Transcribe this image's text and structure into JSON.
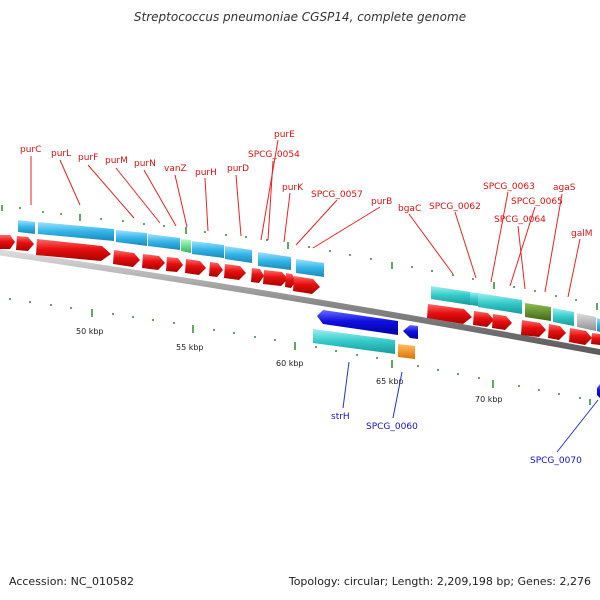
{
  "title": "Streptococcus pneumoniae CGSP14, complete genome",
  "footer": {
    "accession": "Accession: NC_010582",
    "summary": "Topology: circular; Length: 2,209,198 bp; Genes: 2,276"
  },
  "scale_labels": [
    "50 kbp",
    "55 kbp",
    "60 kbp",
    "65 kbp",
    "70 kbp"
  ],
  "labels_top": [
    "purC",
    "purL",
    "purF",
    "purM",
    "purN",
    "vanZ",
    "purH",
    "purD",
    "purE",
    "SPCG_0054",
    "purK",
    "SPCG_0057",
    "purB",
    "bgaC",
    "SPCG_0062",
    "SPCG_0063",
    "SPCG_0065",
    "SPCG_0064",
    "agaS",
    "galM"
  ],
  "labels_bottom": [
    "strH",
    "SPCG_0060",
    "SPCG_0070"
  ],
  "colors": {
    "cds_forward": "#e81010",
    "cds_reverse": "#1010e0",
    "cog_blue": "#33b5e8",
    "cog_teal": "#33c9c9",
    "cog_green": "#4ee07a",
    "cog_olive": "#5e8c2a",
    "cog_gray": "#b8b8b8",
    "cog_orange": "#ff8c00",
    "backbone": "#9a9a9a",
    "ticks": "#2e8b2e",
    "label_red": "#dd1111",
    "label_blue": "#1111cc"
  }
}
